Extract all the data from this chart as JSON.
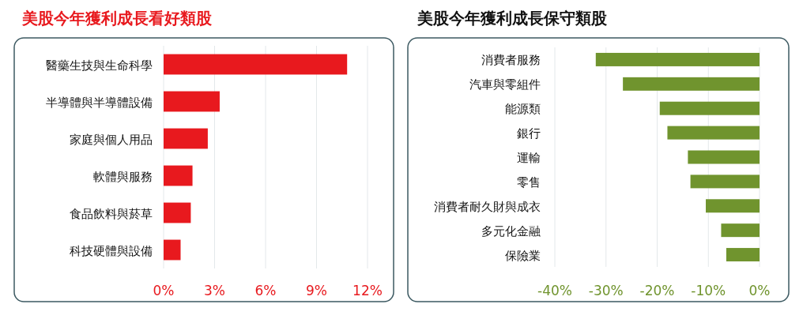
{
  "chart_data": [
    {
      "type": "bar",
      "orientation": "horizontal",
      "title": "美股今年獲利成長看好類股",
      "categories": [
        "醫藥生技與生命科學",
        "半導體與半導體設備",
        "家庭與個人用品",
        "軟體與服務",
        "食品飲料與菸草",
        "科技硬體與設備"
      ],
      "values": [
        10.8,
        3.3,
        2.6,
        1.7,
        1.6,
        1.0
      ],
      "color": "#e8191e",
      "xlim": [
        0,
        12
      ],
      "xticks": [
        {
          "value": 0,
          "label": "0%"
        },
        {
          "value": 3,
          "label": "3%"
        },
        {
          "value": 6,
          "label": "6%"
        },
        {
          "value": 9,
          "label": "9%"
        },
        {
          "value": 12,
          "label": "12%"
        }
      ],
      "grid": "x"
    },
    {
      "type": "bar",
      "orientation": "horizontal",
      "title": "美股今年獲利成長保守類股",
      "categories": [
        "消費者服務",
        "汽車與零組件",
        "能源類",
        "銀行",
        "運輸",
        "零售",
        "消費者耐久財與成衣",
        "多元化金融",
        "保險業"
      ],
      "values": [
        -32,
        -26.7,
        -19.5,
        -18,
        -14,
        -13.5,
        -10.5,
        -7.5,
        -6.5
      ],
      "color": "#70942e",
      "xlim": [
        -40,
        0
      ],
      "xticks": [
        {
          "value": -40,
          "label": "-40%"
        },
        {
          "value": -30,
          "label": "-30%"
        },
        {
          "value": -20,
          "label": "-20%"
        },
        {
          "value": -10,
          "label": "-10%"
        },
        {
          "value": 0,
          "label": "0%"
        }
      ],
      "grid": "x"
    }
  ]
}
